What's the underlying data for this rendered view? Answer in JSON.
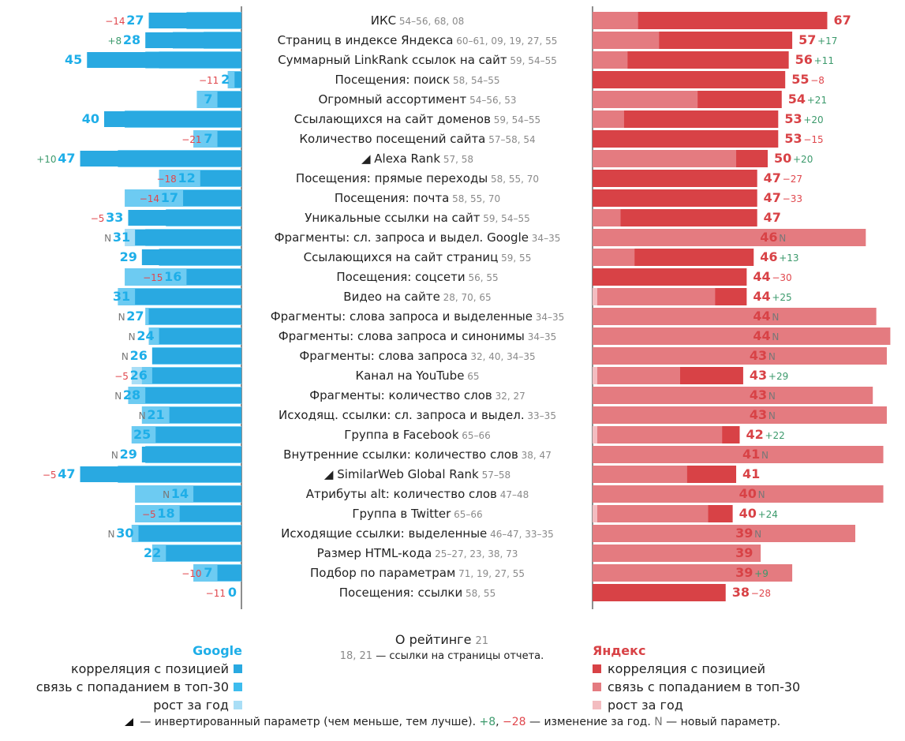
{
  "colors": {
    "google_corr": "#29a9e1",
    "google_top30": "#3dbcee",
    "google_growth": "#a9def6",
    "yandex_corr": "#d84246",
    "yandex_top30": "#e47b80",
    "yandex_growth": "#f3bcc0"
  },
  "chart_data": {
    "type": "bar",
    "title": "",
    "series_google": "Google",
    "series_yandex": "Яндекс",
    "rows": [
      {
        "label": "ИКС",
        "src": "54–56, 68, 08",
        "inverted": false,
        "google": 27,
        "google_change": "−14",
        "yandex": 67,
        "yandex_change": ""
      },
      {
        "label": "Страниц в индексе Яндекса",
        "src": "60–61, 09, 19, 27, 55",
        "inverted": false,
        "google": 28,
        "google_change": "+8",
        "yandex": 57,
        "yandex_change": "+17"
      },
      {
        "label": "Суммарный LinkRank ссылок на сайт",
        "src": "59, 54–55",
        "inverted": false,
        "google": 45,
        "google_change": "",
        "yandex": 56,
        "yandex_change": "+11"
      },
      {
        "label": "Посещения: поиск",
        "src": "58, 54–55",
        "inverted": false,
        "google": 2,
        "google_change": "−11",
        "yandex": 55,
        "yandex_change": "−8"
      },
      {
        "label": "Огромный ассортимент",
        "src": "54–56, 53",
        "inverted": false,
        "google": 7,
        "google_change": "",
        "yandex": 54,
        "yandex_change": "+21"
      },
      {
        "label": "Ссылающихся на сайт доменов",
        "src": "59, 54–55",
        "inverted": false,
        "google": 40,
        "google_change": "",
        "yandex": 53,
        "yandex_change": "+20"
      },
      {
        "label": "Количество посещений сайта",
        "src": "57–58, 54",
        "inverted": false,
        "google": 7,
        "google_change": "−21",
        "yandex": 53,
        "yandex_change": "−15"
      },
      {
        "label": "Alexa Rank",
        "src": "57, 58",
        "inverted": true,
        "google": 47,
        "google_change": "+10",
        "yandex": 50,
        "yandex_change": "+20"
      },
      {
        "label": "Посещения: прямые переходы",
        "src": "58, 55, 70",
        "inverted": false,
        "google": 12,
        "google_change": "−18",
        "yandex": 47,
        "yandex_change": "−27"
      },
      {
        "label": "Посещения: почта",
        "src": "58, 55, 70",
        "inverted": false,
        "google": 17,
        "google_change": "−14",
        "yandex": 47,
        "yandex_change": "−33"
      },
      {
        "label": "Уникальные ссылки на сайт",
        "src": "59, 54–55",
        "inverted": false,
        "google": 33,
        "google_change": "−5",
        "yandex": 47,
        "yandex_change": ""
      },
      {
        "label": "Фрагменты: сл. запроса и выдел. Google",
        "src": "34–35",
        "inverted": false,
        "google": 31,
        "google_change": "N",
        "yandex": 46,
        "yandex_change": "N"
      },
      {
        "label": "Ссылающихся на сайт страниц",
        "src": "59, 55",
        "inverted": false,
        "google": 29,
        "google_change": "",
        "yandex": 46,
        "yandex_change": "+13"
      },
      {
        "label": "Посещения: соцсети",
        "src": "56, 55",
        "inverted": false,
        "google": 16,
        "google_change": "−15",
        "yandex": 44,
        "yandex_change": "−30"
      },
      {
        "label": "Видео на сайте",
        "src": "28, 70, 65",
        "inverted": false,
        "google": 31,
        "google_change": "",
        "yandex": 44,
        "yandex_change": "+25"
      },
      {
        "label": "Фрагменты: слова запроса и выделенные",
        "src": "34–35",
        "inverted": false,
        "google": 27,
        "google_change": "N",
        "yandex": 44,
        "yandex_change": "N"
      },
      {
        "label": "Фрагменты: слова запроса и синонимы",
        "src": "34–35",
        "inverted": false,
        "google": 24,
        "google_change": "N",
        "yandex": 44,
        "yandex_change": "N"
      },
      {
        "label": "Фрагменты: слова запроса",
        "src": "32, 40, 34–35",
        "inverted": false,
        "google": 26,
        "google_change": "N",
        "yandex": 43,
        "yandex_change": "N"
      },
      {
        "label": "Канал на YouTube",
        "src": "65",
        "inverted": false,
        "google": 26,
        "google_change": "−5",
        "yandex": 43,
        "yandex_change": "+29"
      },
      {
        "label": "Фрагменты: количество слов",
        "src": "32, 27",
        "inverted": false,
        "google": 28,
        "google_change": "N",
        "yandex": 43,
        "yandex_change": "N"
      },
      {
        "label": "Исходящ. ссылки: сл. запроса и выдел.",
        "src": "33–35",
        "inverted": false,
        "google": 21,
        "google_change": "N",
        "yandex": 43,
        "yandex_change": "N"
      },
      {
        "label": "Группа в Facebook",
        "src": "65–66",
        "inverted": false,
        "google": 25,
        "google_change": "",
        "yandex": 42,
        "yandex_change": "+22"
      },
      {
        "label": "Внутренние ссылки: количество слов",
        "src": "38, 47",
        "inverted": false,
        "google": 29,
        "google_change": "N",
        "yandex": 41,
        "yandex_change": "N"
      },
      {
        "label": "SimilarWeb Global Rank",
        "src": "57–58",
        "inverted": true,
        "google": 47,
        "google_change": "−5",
        "yandex": 41,
        "yandex_change": ""
      },
      {
        "label": "Атрибуты alt: количество слов",
        "src": "47–48",
        "inverted": false,
        "google": 14,
        "google_change": "N",
        "yandex": 40,
        "yandex_change": "N"
      },
      {
        "label": "Группа в Twitter",
        "src": "65–66",
        "inverted": false,
        "google": 18,
        "google_change": "−5",
        "yandex": 40,
        "yandex_change": "+24"
      },
      {
        "label": "Исходящие ссылки: выделенные",
        "src": "46–47, 33–35",
        "inverted": false,
        "google": 30,
        "google_change": "N",
        "yandex": 39,
        "yandex_change": "N"
      },
      {
        "label": "Размер HTML-кода",
        "src": "25–27, 23, 38, 73",
        "inverted": false,
        "google": 22,
        "google_change": "",
        "yandex": 39,
        "yandex_change": ""
      },
      {
        "label": "Подбор по параметрам",
        "src": "71, 19, 27, 55",
        "inverted": false,
        "google": 7,
        "google_change": "−10",
        "yandex": 39,
        "yandex_change": "+9"
      },
      {
        "label": "Посещения: ссылки",
        "src": "58, 55",
        "inverted": false,
        "google": 0,
        "google_change": "−11",
        "yandex": 38,
        "yandex_change": "−28"
      }
    ],
    "google_top30": [
      16,
      20,
      24,
      4,
      13,
      34,
      14,
      36,
      24,
      34,
      22,
      34,
      24,
      34,
      36,
      28,
      27,
      26,
      32,
      33,
      29,
      32,
      28,
      36,
      31,
      31,
      32,
      26,
      14,
      0
    ],
    "google_growth": [
      16,
      11,
      28,
      4,
      13,
      34,
      14,
      36,
      24,
      34,
      22,
      28,
      24,
      34,
      36,
      28,
      27,
      26,
      29,
      33,
      29,
      32,
      28,
      36,
      31,
      31,
      32,
      26,
      14,
      0
    ],
    "yandex_top30": [
      13,
      19,
      10,
      0,
      30,
      9,
      0,
      41,
      0,
      0,
      8,
      78,
      12,
      0,
      35,
      81,
      85,
      84,
      25,
      80,
      84,
      37,
      83,
      27,
      83,
      33,
      75,
      48,
      57,
      0
    ],
    "yandex_growth": [
      13,
      19,
      10,
      0,
      30,
      9,
      0,
      41,
      0,
      0,
      8,
      78,
      12,
      0,
      3,
      81,
      85,
      84,
      4,
      80,
      84,
      3,
      83,
      27,
      83,
      3,
      75,
      48,
      57,
      0
    ]
  },
  "legend": {
    "google_title": "Google",
    "yandex_title": "Яндекс",
    "corr": "корреляция с позицией",
    "top30": "связь с попаданием в топ-30",
    "growth": "рост за год"
  },
  "about": {
    "title": "О рейтинге",
    "title_ref": "21",
    "note_refs": "18, 21",
    "note_text": " — ссылки на страницы отчета."
  },
  "footnote": {
    "inverted_text": " — инвертированный параметр (чем меньше, тем лучше). ",
    "pos_example": "+8",
    "sep": ", ",
    "neg_example": "−28",
    "change_text": " — изменение за год. ",
    "new_symbol": "N",
    "new_text": " — новый параметр."
  }
}
